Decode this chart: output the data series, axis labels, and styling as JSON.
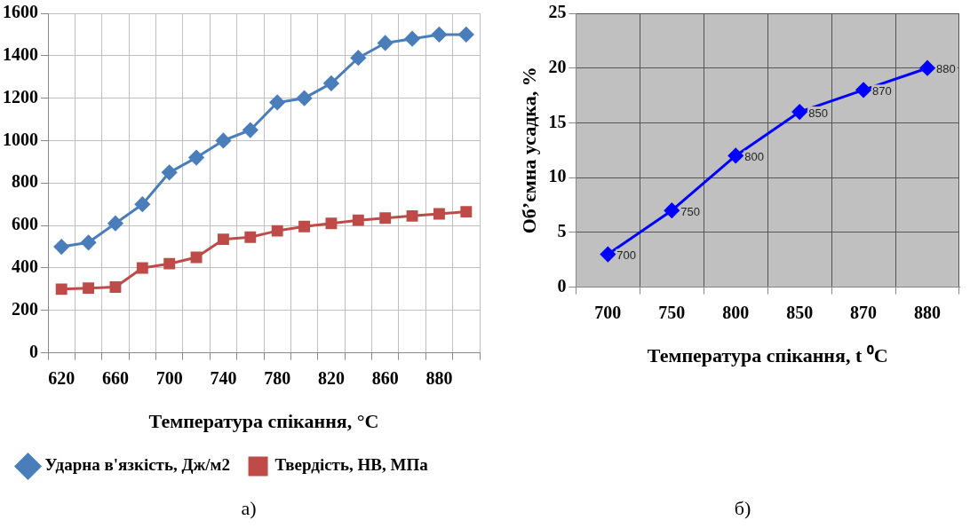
{
  "chart_data": [
    {
      "type": "line",
      "categories": [
        "620",
        null,
        "660",
        null,
        "700",
        null,
        "740",
        null,
        "780",
        null,
        "820",
        null,
        "860",
        null,
        "880",
        null
      ],
      "xlabel": "Температура спікання, °C",
      "ylim": [
        0,
        1600
      ],
      "yticks": [
        0,
        200,
        400,
        600,
        800,
        1000,
        1200,
        1400,
        1600
      ],
      "grid": true,
      "legend": "bottom",
      "annotations": [
        "а)"
      ],
      "series": [
        {
          "name": "Ударна в'язкість, Дж/м2",
          "color": "#4a7ebb",
          "marker": "diamond",
          "values": [
            500,
            520,
            610,
            700,
            850,
            920,
            1000,
            1050,
            1180,
            1200,
            1270,
            1390,
            1460,
            1480,
            1500,
            1500
          ]
        },
        {
          "name": "Твердість, НВ, МПа",
          "color": "#be4b48",
          "marker": "square",
          "values": [
            300,
            305,
            310,
            400,
            420,
            450,
            535,
            545,
            575,
            595,
            610,
            625,
            635,
            645,
            655,
            665
          ]
        }
      ]
    },
    {
      "type": "line",
      "categories": [
        "700",
        "750",
        "800",
        "850",
        "870",
        "880"
      ],
      "xlabel": "Температура спікання, t ⁰C",
      "ylabel": "Об’ємна усадка, %",
      "ylim": [
        0,
        25
      ],
      "yticks": [
        0,
        5,
        10,
        15,
        20,
        25
      ],
      "grid": true,
      "marker": "diamond",
      "annotations": [
        "б)",
        {
          "text": "700",
          "x": "700",
          "y": 3
        },
        {
          "text": "750",
          "x": "750",
          "y": 7
        },
        {
          "text": "800",
          "x": "800",
          "y": 12
        },
        {
          "text": "850",
          "x": "850",
          "y": 16
        },
        {
          "text": "870",
          "x": "870",
          "y": 18
        },
        {
          "text": "880",
          "x": "880",
          "y": 20
        }
      ],
      "series": [
        {
          "color": "#0000ff",
          "values": [
            3,
            7,
            12,
            16,
            18,
            20
          ]
        }
      ]
    }
  ]
}
